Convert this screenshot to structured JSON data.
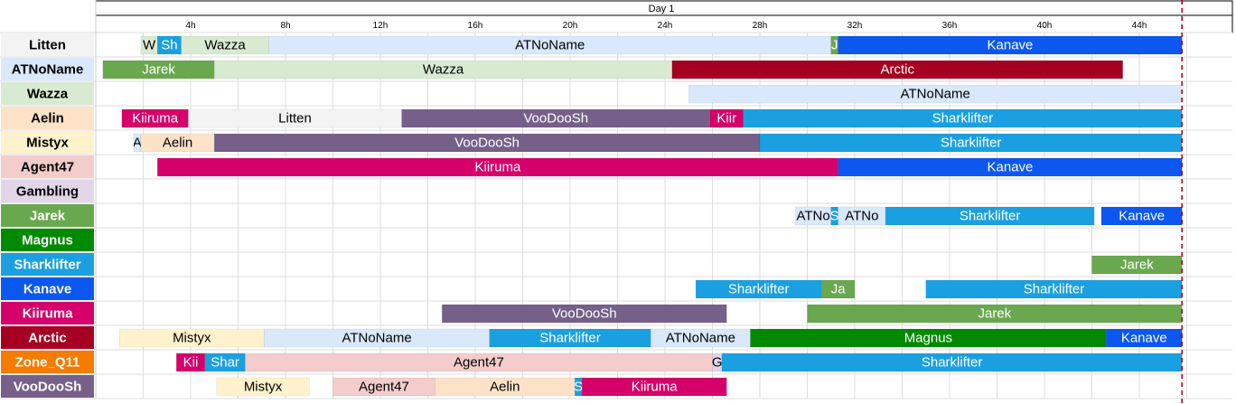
{
  "chart_data": {
    "type": "gantt",
    "title": "Day 1",
    "x_unit": "hours",
    "x_ticks": [
      4,
      8,
      12,
      16,
      20,
      24,
      28,
      32,
      36,
      40,
      44
    ],
    "x_tick_labels": [
      "4h",
      "8h",
      "12h",
      "16h",
      "20h",
      "24h",
      "28h",
      "32h",
      "36h",
      "40h",
      "44h"
    ],
    "xlim": [
      0,
      47.5
    ],
    "current_time": 45.8,
    "rows": [
      {
        "name": "Litten",
        "color": "#f3f3f3",
        "text_color": "#000000",
        "bars": [
          {
            "label": "W",
            "start": 1.9,
            "end": 2.6,
            "color": "#d9ead3",
            "text": "#000000"
          },
          {
            "label": "Sh",
            "start": 2.6,
            "end": 3.6,
            "color": "#1aa0e0",
            "text": "#ffffff"
          },
          {
            "label": "Wazza",
            "start": 3.6,
            "end": 7.3,
            "color": "#d9ead3",
            "text": "#000000"
          },
          {
            "label": "ATNoName",
            "start": 7.3,
            "end": 31.0,
            "color": "#dae8fc",
            "text": "#000000"
          },
          {
            "label": "J",
            "start": 31.0,
            "end": 31.3,
            "color": "#6aa84f",
            "text": "#ffffff"
          },
          {
            "label": "Kanave",
            "start": 31.3,
            "end": 45.8,
            "color": "#0b57f0",
            "text": "#ffffff"
          }
        ]
      },
      {
        "name": "ATNoName",
        "color": "#dae8fc",
        "text_color": "#000000",
        "bars": [
          {
            "label": "Jarek",
            "start": 0.3,
            "end": 5.0,
            "color": "#6aa84f",
            "text": "#ffffff"
          },
          {
            "label": "Wazza",
            "start": 5.0,
            "end": 24.3,
            "color": "#d9ead3",
            "text": "#000000"
          },
          {
            "label": "Arctic",
            "start": 24.3,
            "end": 43.3,
            "color": "#a50021",
            "text": "#ffffff"
          }
        ]
      },
      {
        "name": "Wazza",
        "color": "#d9ead3",
        "text_color": "#000000",
        "bars": [
          {
            "label": "ATNoName",
            "start": 25.0,
            "end": 45.8,
            "color": "#dae8fc",
            "text": "#000000"
          }
        ]
      },
      {
        "name": "Aelin",
        "color": "#fde2c8",
        "text_color": "#000000",
        "bars": [
          {
            "label": "Kiiruma",
            "start": 1.1,
            "end": 3.9,
            "color": "#d6006b",
            "text": "#ffffff"
          },
          {
            "label": "Litten",
            "start": 3.9,
            "end": 12.9,
            "color": "#f3f3f3",
            "text": "#000000"
          },
          {
            "label": "VooDooSh",
            "start": 12.9,
            "end": 25.9,
            "color": "#76608a",
            "text": "#ffffff"
          },
          {
            "label": "Kiir",
            "start": 25.9,
            "end": 27.3,
            "color": "#d6006b",
            "text": "#ffffff"
          },
          {
            "label": "Sharklifter",
            "start": 27.3,
            "end": 45.8,
            "color": "#1aa0e0",
            "text": "#ffffff"
          }
        ]
      },
      {
        "name": "Mistyx",
        "color": "#fff2cc",
        "text_color": "#000000",
        "bars": [
          {
            "label": "A",
            "start": 1.6,
            "end": 1.9,
            "color": "#dae8fc",
            "text": "#000000"
          },
          {
            "label": "Aelin",
            "start": 1.9,
            "end": 5.0,
            "color": "#fde2c8",
            "text": "#000000"
          },
          {
            "label": "VooDooSh",
            "start": 5.0,
            "end": 28.0,
            "color": "#76608a",
            "text": "#ffffff"
          },
          {
            "label": "Sharklifter",
            "start": 28.0,
            "end": 45.8,
            "color": "#1aa0e0",
            "text": "#ffffff"
          }
        ]
      },
      {
        "name": "Agent47",
        "color": "#f4cccc",
        "text_color": "#000000",
        "bars": [
          {
            "label": "Kiiruma",
            "start": 2.6,
            "end": 31.3,
            "color": "#d6006b",
            "text": "#ffffff"
          },
          {
            "label": "Kanave",
            "start": 31.3,
            "end": 45.8,
            "color": "#0b57f0",
            "text": "#ffffff"
          }
        ]
      },
      {
        "name": "Gambling",
        "color": "#e1d5e7",
        "text_color": "#000000",
        "bars": []
      },
      {
        "name": "Jarek",
        "color": "#6aa84f",
        "text_color": "#ffffff",
        "bars": [
          {
            "label": "ATNo",
            "start": 29.5,
            "end": 31.0,
            "color": "#dae8fc",
            "text": "#000000"
          },
          {
            "label": "S",
            "start": 31.0,
            "end": 31.3,
            "color": "#1aa0e0",
            "text": "#ffffff"
          },
          {
            "label": "ATNo",
            "start": 31.3,
            "end": 33.3,
            "color": "#dae8fc",
            "text": "#000000"
          },
          {
            "label": "Sharklifter",
            "start": 33.3,
            "end": 42.1,
            "color": "#1aa0e0",
            "text": "#ffffff"
          },
          {
            "label": "Kanave",
            "start": 42.4,
            "end": 45.8,
            "color": "#0b57f0",
            "text": "#ffffff"
          }
        ]
      },
      {
        "name": "Magnus",
        "color": "#008a00",
        "text_color": "#ffffff",
        "bars": []
      },
      {
        "name": "Sharklifter",
        "color": "#1aa0e0",
        "text_color": "#ffffff",
        "bars": [
          {
            "label": "Jarek",
            "start": 42.0,
            "end": 45.8,
            "color": "#6aa84f",
            "text": "#ffffff"
          }
        ]
      },
      {
        "name": "Kanave",
        "color": "#0b57f0",
        "text_color": "#ffffff",
        "bars": [
          {
            "label": "Sharklifter",
            "start": 25.3,
            "end": 30.6,
            "color": "#1aa0e0",
            "text": "#ffffff"
          },
          {
            "label": "Ja",
            "start": 30.6,
            "end": 32.0,
            "color": "#6aa84f",
            "text": "#ffffff"
          },
          {
            "label": "Sharklifter",
            "start": 35.0,
            "end": 45.8,
            "color": "#1aa0e0",
            "text": "#ffffff"
          }
        ]
      },
      {
        "name": "Kiiruma",
        "color": "#d6006b",
        "text_color": "#ffffff",
        "bars": [
          {
            "label": "VooDooSh",
            "start": 14.6,
            "end": 26.6,
            "color": "#76608a",
            "text": "#ffffff"
          },
          {
            "label": "Jarek",
            "start": 30.0,
            "end": 45.8,
            "color": "#6aa84f",
            "text": "#ffffff"
          }
        ]
      },
      {
        "name": "Arctic",
        "color": "#a50021",
        "text_color": "#ffffff",
        "bars": [
          {
            "label": "Mistyx",
            "start": 1.0,
            "end": 7.1,
            "color": "#fff2cc",
            "text": "#000000"
          },
          {
            "label": "ATNoName",
            "start": 7.1,
            "end": 16.6,
            "color": "#dae8fc",
            "text": "#000000"
          },
          {
            "label": "Sharklifter",
            "start": 16.6,
            "end": 23.4,
            "color": "#1aa0e0",
            "text": "#ffffff"
          },
          {
            "label": "ATNoName",
            "start": 23.4,
            "end": 27.6,
            "color": "#dae8fc",
            "text": "#000000"
          },
          {
            "label": "Magnus",
            "start": 27.6,
            "end": 42.6,
            "color": "#008a00",
            "text": "#ffffff"
          },
          {
            "label": "Kanave",
            "start": 42.6,
            "end": 45.8,
            "color": "#0b57f0",
            "text": "#ffffff"
          }
        ]
      },
      {
        "name": "Zone_Q11",
        "color": "#f57c00",
        "text_color": "#ffffff",
        "bars": [
          {
            "label": "Kii",
            "start": 3.4,
            "end": 4.6,
            "color": "#d6006b",
            "text": "#ffffff"
          },
          {
            "label": "Shar",
            "start": 4.6,
            "end": 6.3,
            "color": "#1aa0e0",
            "text": "#ffffff"
          },
          {
            "label": "Agent47",
            "start": 6.3,
            "end": 26.0,
            "color": "#f4cccc",
            "text": "#000000"
          },
          {
            "label": "G",
            "start": 26.0,
            "end": 26.4,
            "color": "#e1d5e7",
            "text": "#000000"
          },
          {
            "label": "Sharklifter",
            "start": 26.4,
            "end": 45.8,
            "color": "#1aa0e0",
            "text": "#ffffff"
          }
        ]
      },
      {
        "name": "VooDooSh",
        "color": "#76608a",
        "text_color": "#ffffff",
        "bars": [
          {
            "label": "Mistyx",
            "start": 5.1,
            "end": 9.0,
            "color": "#fff2cc",
            "text": "#000000"
          },
          {
            "label": "Agent47",
            "start": 10.0,
            "end": 14.3,
            "color": "#f4cccc",
            "text": "#000000"
          },
          {
            "label": "Aelin",
            "start": 14.3,
            "end": 20.2,
            "color": "#fde2c8",
            "text": "#000000"
          },
          {
            "label": "S",
            "start": 20.2,
            "end": 20.5,
            "color": "#1aa0e0",
            "text": "#ffffff"
          },
          {
            "label": "Kiiruma",
            "start": 20.5,
            "end": 26.6,
            "color": "#d6006b",
            "text": "#ffffff"
          }
        ]
      }
    ]
  }
}
